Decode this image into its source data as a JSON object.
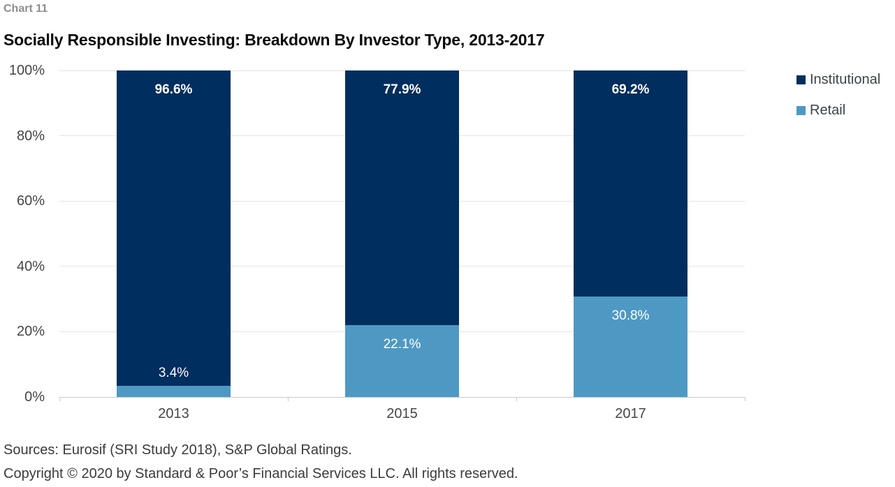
{
  "header": {
    "chart_label": "Chart 11"
  },
  "chart_data": {
    "type": "bar",
    "subtype": "stacked-100-percent",
    "title": "Socially Responsible Investing: Breakdown By Investor Type, 2013-2017",
    "categories": [
      "2013",
      "2015",
      "2017"
    ],
    "series": [
      {
        "name": "Institutional",
        "color": "#002E5F",
        "values": [
          96.6,
          77.9,
          69.2
        ],
        "labels": [
          "96.6%",
          "77.9%",
          "69.2%"
        ]
      },
      {
        "name": "Retail",
        "color": "#4E99C4",
        "values": [
          3.4,
          22.1,
          30.8
        ],
        "labels": [
          "3.4%",
          "22.1%",
          "30.8%"
        ]
      }
    ],
    "xlabel": "",
    "ylabel": "",
    "ylim": [
      0,
      100
    ],
    "yticks": [
      0,
      20,
      40,
      60,
      80,
      100
    ],
    "ytick_labels": [
      "0%",
      "20%",
      "40%",
      "60%",
      "80%",
      "100%"
    ],
    "grid": true,
    "legend_position": "right"
  },
  "footer": {
    "sources": "Sources: Eurosif (SRI Study 2018), S&P Global Ratings.",
    "copyright": "Copyright © 2020 by Standard & Poor’s Financial Services LLC. All rights reserved."
  },
  "colors": {
    "institutional": "#002E5F",
    "retail": "#4E99C4",
    "gridline": "#E4E4E4",
    "axis": "#CBCBCB",
    "axis_text": "#454545",
    "chart_label_gray": "#8D8D8D"
  }
}
